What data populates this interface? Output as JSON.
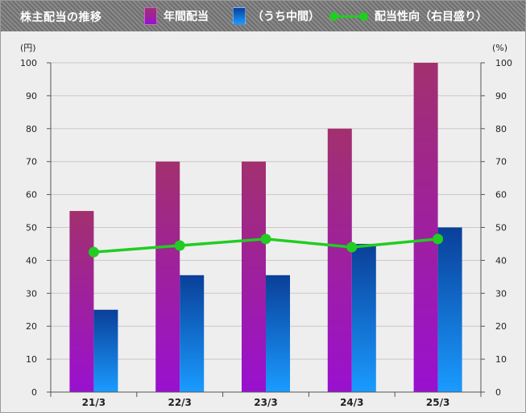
{
  "header": {
    "title": "株主配当の推移",
    "legend": [
      {
        "label": "年間配当",
        "color": "#a0307a"
      },
      {
        "label": "（うち中間）",
        "color": "#1a5fc0"
      },
      {
        "label": "配当性向（右目盛り）",
        "color": "#22cc22"
      }
    ]
  },
  "colors": {
    "annual_top": "#a2306e",
    "annual_bottom": "#9a10d0",
    "interim_top": "#0a3f99",
    "interim_bottom": "#1a9bff",
    "line": "#22cc22",
    "background": "#eeeeee",
    "header": "#7a7a7a"
  },
  "chart_data": {
    "type": "bar",
    "categories": [
      "21/3",
      "22/3",
      "23/3",
      "24/3",
      "25/3"
    ],
    "series": [
      {
        "name": "年間配当",
        "values": [
          55,
          70,
          70,
          80,
          100
        ],
        "axis": "left",
        "kind": "bar"
      },
      {
        "name": "（うち中間）",
        "values": [
          25,
          35.5,
          35.5,
          45,
          50
        ],
        "axis": "left",
        "kind": "bar"
      },
      {
        "name": "配当性向（右目盛り）",
        "values": [
          42.5,
          44.5,
          46.5,
          44,
          46.5
        ],
        "axis": "right",
        "kind": "line"
      }
    ],
    "ylabel_left": "(円)",
    "ylabel_right": "(%)",
    "ylim_left": [
      0,
      100
    ],
    "ylim_right": [
      0,
      100
    ],
    "yticks": [
      0,
      10,
      20,
      30,
      40,
      50,
      60,
      70,
      80,
      90,
      100
    ],
    "grid": true
  }
}
